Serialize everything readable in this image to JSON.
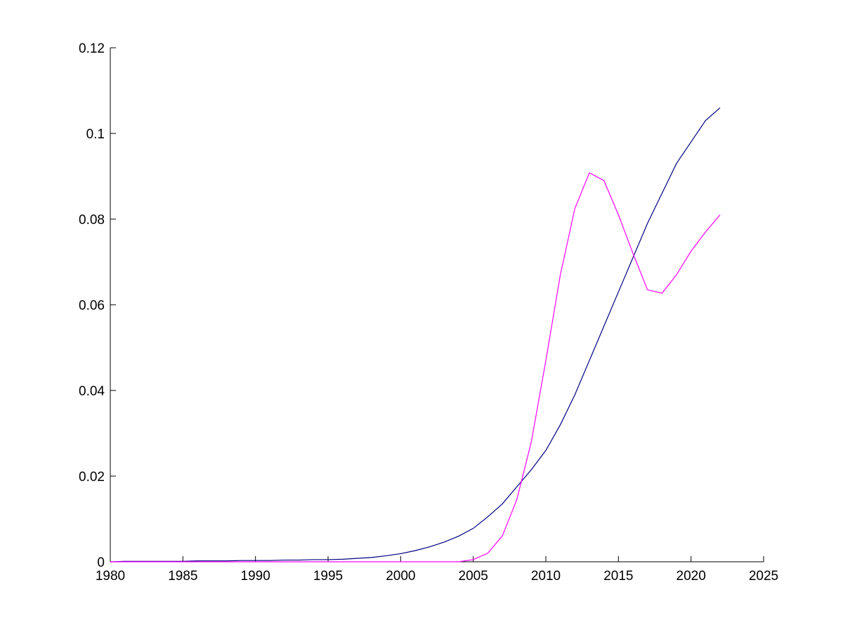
{
  "chart_data": {
    "type": "line",
    "x": [
      1980,
      1981,
      1982,
      1983,
      1984,
      1985,
      1986,
      1987,
      1988,
      1989,
      1990,
      1991,
      1992,
      1993,
      1994,
      1995,
      1996,
      1997,
      1998,
      1999,
      2000,
      2001,
      2002,
      2003,
      2004,
      2005,
      2006,
      2007,
      2008,
      2009,
      2010,
      2011,
      2012,
      2013,
      2014,
      2015,
      2016,
      2017,
      2018,
      2019,
      2020,
      2021,
      2022
    ],
    "series": [
      {
        "color": "#000080",
        "values": [
          0,
          0.0001,
          0.0001,
          0.0001,
          0.0001,
          0.0001,
          0.0002,
          0.0002,
          0.0002,
          0.0003,
          0.0003,
          0.0003,
          0.0004,
          0.0004,
          0.0005,
          0.0005,
          0.0006,
          0.0008,
          0.001,
          0.0014,
          0.0019,
          0.0026,
          0.0035,
          0.0046,
          0.006,
          0.0078,
          0.0105,
          0.0135,
          0.0175,
          0.0215,
          0.026,
          0.032,
          0.039,
          0.047,
          0.055,
          0.063,
          0.071,
          0.079,
          0.086,
          0.093,
          0.098,
          0.103,
          0.106
        ]
      },
      {
        "color": "#ff00ff",
        "values": [
          0,
          0,
          0,
          0,
          0,
          0,
          0,
          0,
          0,
          0,
          0,
          0,
          0,
          0,
          0,
          0,
          0,
          0,
          0,
          0,
          0,
          0,
          0,
          0,
          0,
          0.0005,
          0.002,
          0.006,
          0.0145,
          0.028,
          0.047,
          0.067,
          0.0825,
          0.0908,
          0.089,
          0.081,
          0.072,
          0.0635,
          0.0627,
          0.067,
          0.0725,
          0.077,
          0.081
        ]
      }
    ],
    "xlim": [
      1980,
      2025
    ],
    "xticks": [
      1980,
      1985,
      1990,
      1995,
      2000,
      2005,
      2010,
      2015,
      2020,
      2025
    ],
    "ylim": [
      0,
      0.12
    ],
    "yticks": [
      0,
      0.02,
      0.04,
      0.06,
      0.08,
      0.1,
      0.12
    ]
  }
}
